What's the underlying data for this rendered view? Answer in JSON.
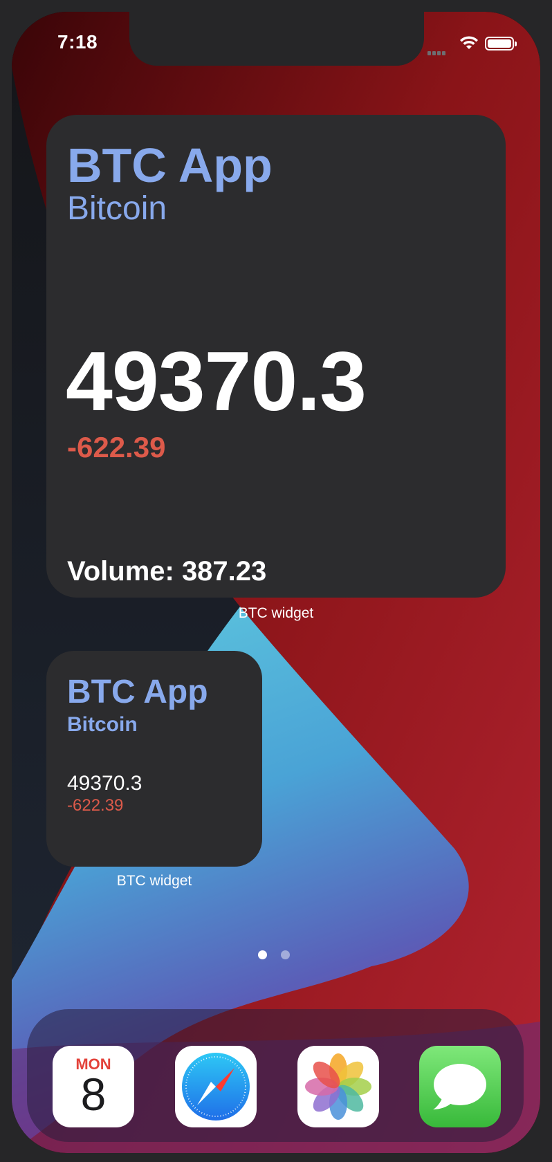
{
  "status_bar": {
    "time": "7:18"
  },
  "widgets": {
    "large": {
      "title": "BTC App",
      "subtitle": "Bitcoin",
      "price": "49370.3",
      "change": "-622.39",
      "volume": "Volume: 387.23",
      "label": "BTC widget"
    },
    "small": {
      "title": "BTC App",
      "subtitle": "Bitcoin",
      "price": "49370.3",
      "change": "-622.39",
      "label": "BTC widget"
    }
  },
  "page_indicator": {
    "pages": 2,
    "current": 1
  },
  "dock": {
    "apps": [
      {
        "name": "Calendar",
        "icon": "calendar-icon",
        "day": "MON",
        "date": "8"
      },
      {
        "name": "Safari",
        "icon": "safari-icon"
      },
      {
        "name": "Photos",
        "icon": "photos-icon"
      },
      {
        "name": "Messages",
        "icon": "messages-icon"
      }
    ]
  },
  "colors": {
    "accent_blue": "#88a9ec",
    "negative_red": "#dd5a4a",
    "widget_bg": "#2c2c2e"
  }
}
